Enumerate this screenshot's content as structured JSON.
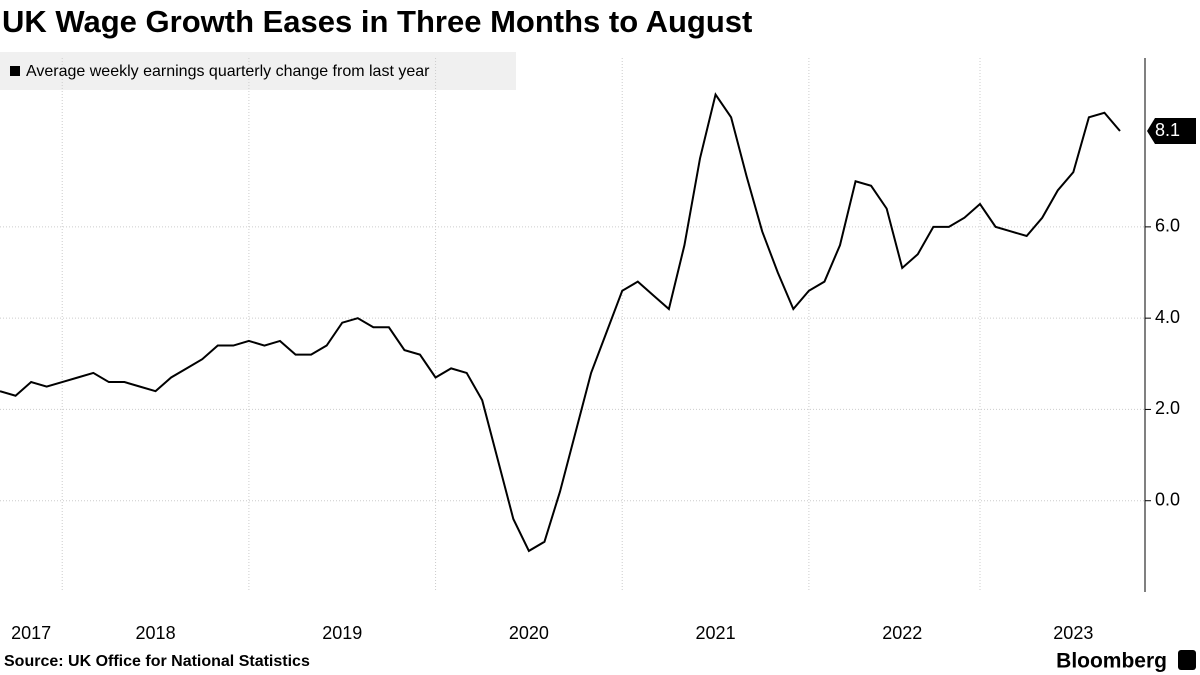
{
  "chart_data": {
    "type": "line",
    "title": "UK Wage Growth Eases in Three Months to August",
    "source": "Source: UK Office for National Statistics",
    "brand": "Bloomberg",
    "categories": [
      null,
      null,
      "2017",
      null,
      null,
      null,
      null,
      null,
      null,
      null,
      "2018",
      null,
      null,
      null,
      null,
      null,
      null,
      null,
      null,
      null,
      null,
      null,
      "2019",
      null,
      null,
      null,
      null,
      null,
      null,
      null,
      null,
      null,
      null,
      null,
      "2020",
      null,
      null,
      null,
      null,
      null,
      null,
      null,
      null,
      null,
      null,
      null,
      "2021",
      null,
      null,
      null,
      null,
      null,
      null,
      null,
      null,
      null,
      null,
      null,
      "2022",
      null,
      null,
      null,
      null,
      null,
      null,
      null,
      null,
      null,
      null,
      "2023",
      null,
      null,
      null
    ],
    "series": [
      {
        "name": "Average weekly earnings quarterly change from last year",
        "color": "#000000",
        "values": [
          2.4,
          2.3,
          2.6,
          2.5,
          2.6,
          2.7,
          2.8,
          2.6,
          2.6,
          2.5,
          2.4,
          2.7,
          2.9,
          3.1,
          3.4,
          3.4,
          3.5,
          3.4,
          3.5,
          3.2,
          3.2,
          3.4,
          3.9,
          4.0,
          3.8,
          3.8,
          3.3,
          3.2,
          2.7,
          2.9,
          2.8,
          2.2,
          0.9,
          -0.4,
          -1.1,
          -0.9,
          0.2,
          1.5,
          2.8,
          3.7,
          4.6,
          4.8,
          4.5,
          4.2,
          5.6,
          7.5,
          8.9,
          8.4,
          7.1,
          5.9,
          5.0,
          4.2,
          4.6,
          4.8,
          5.6,
          7.0,
          6.9,
          6.4,
          5.1,
          5.4,
          6.0,
          6.0,
          6.2,
          6.5,
          6.0,
          5.9,
          5.8,
          6.2,
          6.8,
          7.2,
          8.4,
          8.5,
          8.1
        ]
      }
    ],
    "ylim": [
      -2,
      9.7
    ],
    "yticks": [
      {
        "value": 0,
        "label": "0.0"
      },
      {
        "value": 2,
        "label": "2.0"
      },
      {
        "value": 4,
        "label": "4.0"
      },
      {
        "value": 6,
        "label": "6.0"
      }
    ],
    "grid": true
  }
}
